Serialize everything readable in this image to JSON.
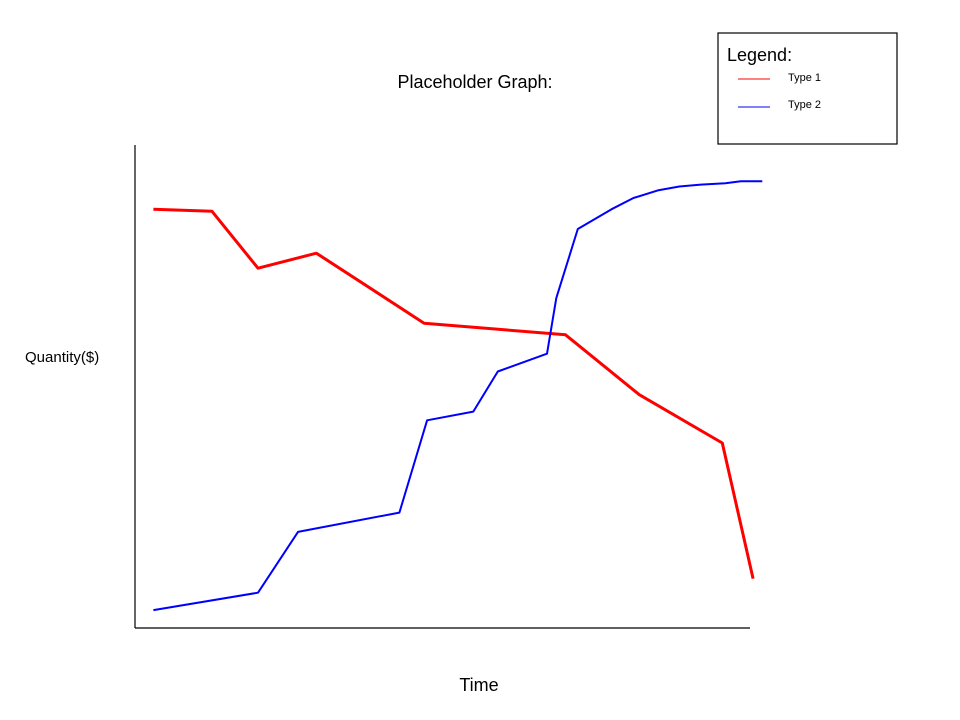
{
  "chart_data": {
    "type": "line",
    "title": "Placeholder Graph:",
    "xlabel": "Time",
    "ylabel": "Quantity($)",
    "xlim": [
      0,
      100
    ],
    "ylim": [
      0,
      100
    ],
    "grid": false,
    "legend": {
      "title": "Legend:",
      "position": "top-right"
    },
    "series": [
      {
        "name": "Type 1",
        "color": "#ff0000",
        "points": [
          [
            3,
            86.7
          ],
          [
            12.5,
            86.3
          ],
          [
            20,
            74.5
          ],
          [
            29.5,
            77.6
          ],
          [
            47,
            63.1
          ],
          [
            70,
            60.7
          ],
          [
            82,
            48.3
          ],
          [
            95.5,
            38.3
          ],
          [
            100.5,
            10.2
          ]
        ]
      },
      {
        "name": "Type 2",
        "color": "#0000ff",
        "points": [
          [
            3,
            3.7
          ],
          [
            20,
            7.3
          ],
          [
            26.5,
            19.9
          ],
          [
            43,
            23.9
          ],
          [
            47.5,
            43.0
          ],
          [
            55,
            44.8
          ],
          [
            59,
            53.1
          ],
          [
            67,
            56.8
          ],
          [
            68.5,
            68.3
          ],
          [
            72,
            82.6
          ],
          [
            77.5,
            86.7
          ],
          [
            81,
            89.0
          ],
          [
            85,
            90.6
          ],
          [
            88.5,
            91.4
          ],
          [
            92,
            91.8
          ],
          [
            96,
            92.1
          ],
          [
            98.5,
            92.5
          ],
          [
            102,
            92.5
          ]
        ]
      }
    ]
  }
}
